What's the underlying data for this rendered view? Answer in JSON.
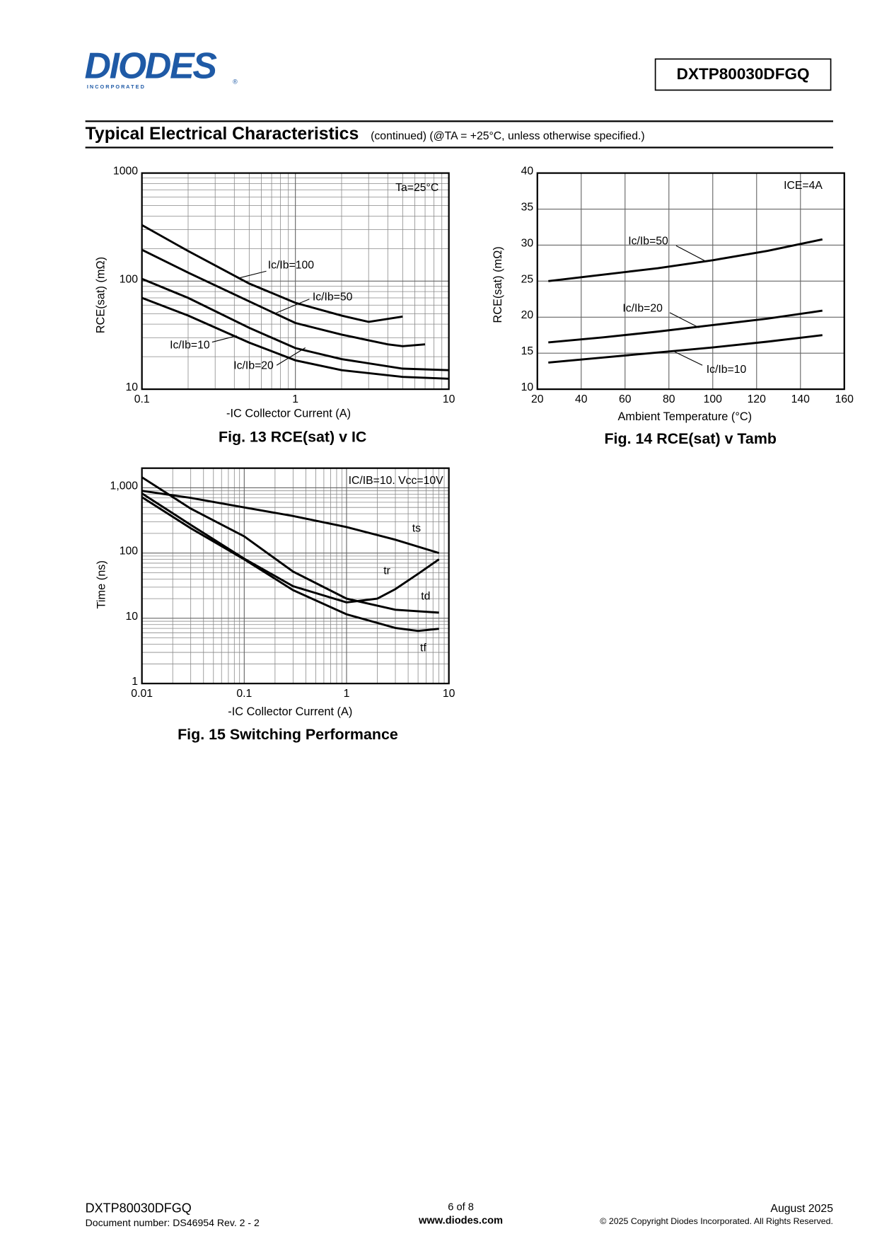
{
  "header": {
    "logo": "DIODES",
    "logo_sub": "I N C O R P O R A T E D",
    "logo_mark": "®",
    "part_number": "DXTP80030DFGQ",
    "section_title": "Typical Electrical Characteristics",
    "section_note": "(continued)  (@TA = +25°C, unless otherwise specified.)"
  },
  "chart_data": [
    {
      "type": "line",
      "caption": "Fig. 13    RCE(sat)  v  IC",
      "xlabel": "-IC   Collector Current (A)",
      "ylabel": "RCE(sat) (mΩ)",
      "annotation": "Ta=25°C",
      "xscale": "log",
      "yscale": "log",
      "grid": true,
      "minor_grid": true,
      "xlim": [
        0.1,
        10
      ],
      "ylim": [
        10,
        1000
      ],
      "xticks": [
        0.1,
        1,
        10
      ],
      "yticks": [
        10,
        100,
        1000
      ],
      "series": [
        {
          "name": "Ic/Ib=100",
          "color": "#000000",
          "x": [
            0.1,
            0.2,
            0.5,
            1,
            2,
            3,
            5
          ],
          "values": [
            330,
            190,
            95,
            63,
            48,
            42,
            47
          ]
        },
        {
          "name": "Ic/Ib=50",
          "color": "#000000",
          "x": [
            0.1,
            0.2,
            0.5,
            1,
            2,
            4,
            5,
            7
          ],
          "values": [
            195,
            120,
            65,
            41,
            32,
            26,
            25,
            26
          ]
        },
        {
          "name": "Ic/Ib=20",
          "color": "#000000",
          "x": [
            0.1,
            0.2,
            0.5,
            1,
            2,
            5,
            10
          ],
          "values": [
            105,
            70,
            37,
            24,
            19,
            15.5,
            15
          ]
        },
        {
          "name": "Ic/Ib=10",
          "color": "#000000",
          "x": [
            0.1,
            0.2,
            0.5,
            1,
            2,
            5,
            10
          ],
          "values": [
            70,
            48,
            27,
            18.5,
            15,
            13,
            12.5
          ]
        }
      ]
    },
    {
      "type": "line",
      "caption": "Fig. 14    RCE(sat)  v  Tamb",
      "xlabel": "Ambient Temperature (°C)",
      "ylabel": "RCE(sat) (mΩ)",
      "annotation": "ICE=4A",
      "xscale": "linear",
      "yscale": "linear",
      "grid": true,
      "minor_grid": false,
      "xlim": [
        20,
        160
      ],
      "ylim": [
        10,
        40
      ],
      "xticks": [
        20,
        40,
        60,
        80,
        100,
        120,
        140,
        160
      ],
      "yticks": [
        10,
        15,
        20,
        25,
        30,
        35,
        40
      ],
      "series": [
        {
          "name": "Ic/Ib=50",
          "color": "#000000",
          "x": [
            25,
            50,
            75,
            100,
            125,
            150
          ],
          "values": [
            25,
            25.9,
            26.8,
            27.9,
            29.2,
            30.8
          ]
        },
        {
          "name": "Ic/Ib=20",
          "color": "#000000",
          "x": [
            25,
            50,
            75,
            100,
            125,
            150
          ],
          "values": [
            16.5,
            17.2,
            18,
            18.9,
            19.8,
            20.9
          ]
        },
        {
          "name": "Ic/Ib=10",
          "color": "#000000",
          "x": [
            25,
            50,
            75,
            100,
            125,
            150
          ],
          "values": [
            13.7,
            14.4,
            15.1,
            15.8,
            16.6,
            17.5
          ]
        }
      ]
    },
    {
      "type": "line",
      "caption": "Fig. 15  Switching Performance",
      "xlabel": "-IC   Collector Current (A)",
      "ylabel": "Time (ns)",
      "annotation": "IC/IB=10. Vcc=10V",
      "xscale": "log",
      "yscale": "log",
      "grid": true,
      "minor_grid": true,
      "xlim": [
        0.01,
        10
      ],
      "ylim": [
        1,
        2000
      ],
      "xticks": [
        0.01,
        0.1,
        1,
        10
      ],
      "yticks": [
        1,
        10,
        100,
        {
          "value": 1000,
          "label": "1,000"
        }
      ],
      "series": [
        {
          "name": "ts",
          "color": "#000000",
          "x": [
            0.01,
            0.03,
            0.1,
            0.3,
            1,
            3,
            8
          ],
          "values": [
            900,
            700,
            500,
            370,
            250,
            160,
            100
          ]
        },
        {
          "name": "tr",
          "color": "#000000",
          "x": [
            0.01,
            0.03,
            0.1,
            0.3,
            1,
            2,
            3,
            5,
            8
          ],
          "values": [
            820,
            270,
            82,
            31,
            17.5,
            20,
            28,
            48,
            80
          ]
        },
        {
          "name": "td",
          "color": "#000000",
          "x": [
            0.01,
            0.03,
            0.1,
            0.3,
            1,
            3,
            8
          ],
          "values": [
            1450,
            480,
            180,
            52,
            20,
            13.5,
            12.2
          ]
        },
        {
          "name": "tf",
          "color": "#000000",
          "x": [
            0.01,
            0.03,
            0.1,
            0.3,
            1,
            3,
            5,
            8
          ],
          "values": [
            720,
            240,
            80,
            27,
            11.5,
            7.1,
            6.4,
            6.9
          ]
        }
      ]
    }
  ],
  "footer": {
    "part_number": "DXTP80030DFGQ",
    "document_number": "Document number: DS46954 Rev. 2 - 2",
    "page": "6 of 8",
    "website": "www.diodes.com",
    "date": "August 2025",
    "copyright": "© 2025 Copyright Diodes Incorporated. All Rights Reserved."
  }
}
